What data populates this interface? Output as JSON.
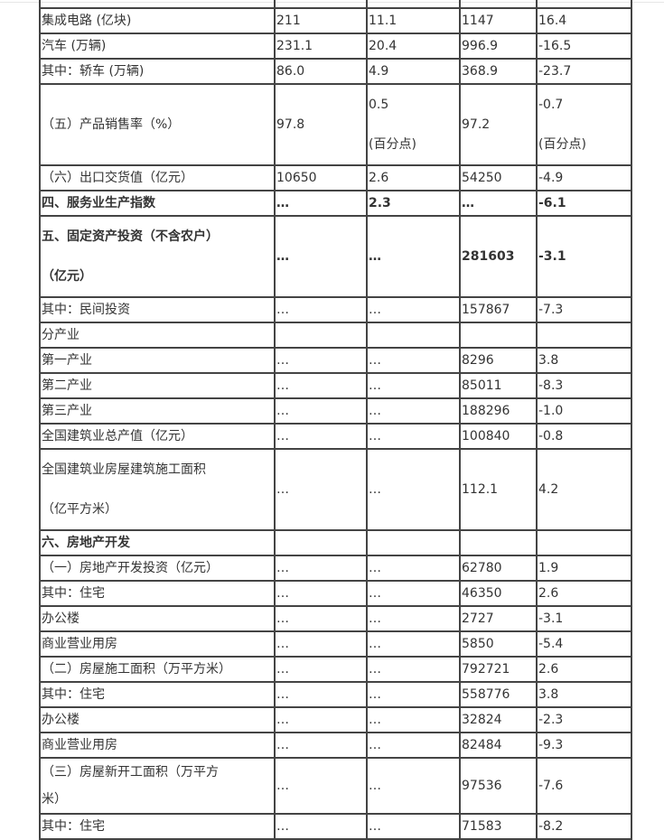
{
  "table": {
    "rows": [
      {
        "cells": [
          "集成电路 (亿块)",
          "211",
          "11.1",
          "1147",
          "16.4"
        ]
      },
      {
        "cells": [
          "汽车 (万辆)",
          "231.1",
          "20.4",
          "996.9",
          "-16.5"
        ]
      },
      {
        "cells": [
          "其中：轿车 (万辆)",
          "86.0",
          "4.9",
          "368.9",
          "-23.7"
        ]
      },
      {
        "cells": [
          " （五）产品销售率（%）",
          "97.8",
          "0.5\n(百分点)",
          "97.2",
          "-0.7\n(百分点)"
        ],
        "style": "t2"
      },
      {
        "cells": [
          " （六）出口交货值（亿元）",
          "10650",
          "2.6",
          "54250",
          "-4.9"
        ]
      },
      {
        "cells": [
          "四、服务业生产指数",
          "…",
          "2.3",
          "…",
          "-6.1"
        ],
        "style": "b"
      },
      {
        "cells": [
          "五、固定资产投资（不含农户）\n（亿元）",
          "…",
          "…",
          "281603",
          "-3.1"
        ],
        "style": "b t2"
      },
      {
        "cells": [
          "其中：民间投资",
          "…",
          "…",
          "157867",
          "-7.3"
        ]
      },
      {
        "cells": [
          "分产业",
          "",
          "",
          "",
          ""
        ]
      },
      {
        "cells": [
          "第一产业",
          "…",
          "…",
          "8296",
          "3.8"
        ]
      },
      {
        "cells": [
          "第二产业",
          "…",
          "…",
          "85011",
          "-8.3"
        ]
      },
      {
        "cells": [
          "第三产业",
          "…",
          "…",
          "188296",
          "-1.0"
        ]
      },
      {
        "cells": [
          "全国建筑业总产值（亿元）",
          "…",
          "…",
          "100840",
          "-0.8"
        ]
      },
      {
        "cells": [
          " 全国建筑业房屋建筑施工面积\n（亿平方米）",
          "…",
          "…",
          "112.1",
          "4.2"
        ],
        "style": "t2"
      },
      {
        "cells": [
          "六、房地产开发",
          "",
          "",
          "",
          ""
        ],
        "style": "b"
      },
      {
        "cells": [
          " （一）房地产开发投资（亿元）",
          "…",
          "…",
          "62780",
          "1.9"
        ]
      },
      {
        "cells": [
          "其中：住宅",
          "…",
          "…",
          "46350",
          "2.6"
        ]
      },
      {
        "cells": [
          "办公楼",
          "…",
          "…",
          "2727",
          "-3.1"
        ]
      },
      {
        "cells": [
          "商业营业用房",
          "…",
          "…",
          "5850",
          "-5.4"
        ]
      },
      {
        "cells": [
          " （二）房屋施工面积（万平方米）",
          "…",
          "…",
          "792721",
          "2.6"
        ]
      },
      {
        "cells": [
          "其中：住宅",
          "…",
          "…",
          "558776",
          "3.8"
        ]
      },
      {
        "cells": [
          "办公楼",
          "…",
          "…",
          "32824",
          "-2.3"
        ]
      },
      {
        "cells": [
          "商业营业用房",
          "…",
          "…",
          "82484",
          "-9.3"
        ]
      },
      {
        "cells": [
          " （三）房屋新开工面积（万平方\n米）",
          "…",
          "…",
          "97536",
          "-7.6"
        ],
        "style": "t3"
      },
      {
        "cells": [
          "其中：住宅",
          "…",
          "…",
          "71583",
          "-8.2"
        ]
      }
    ]
  }
}
